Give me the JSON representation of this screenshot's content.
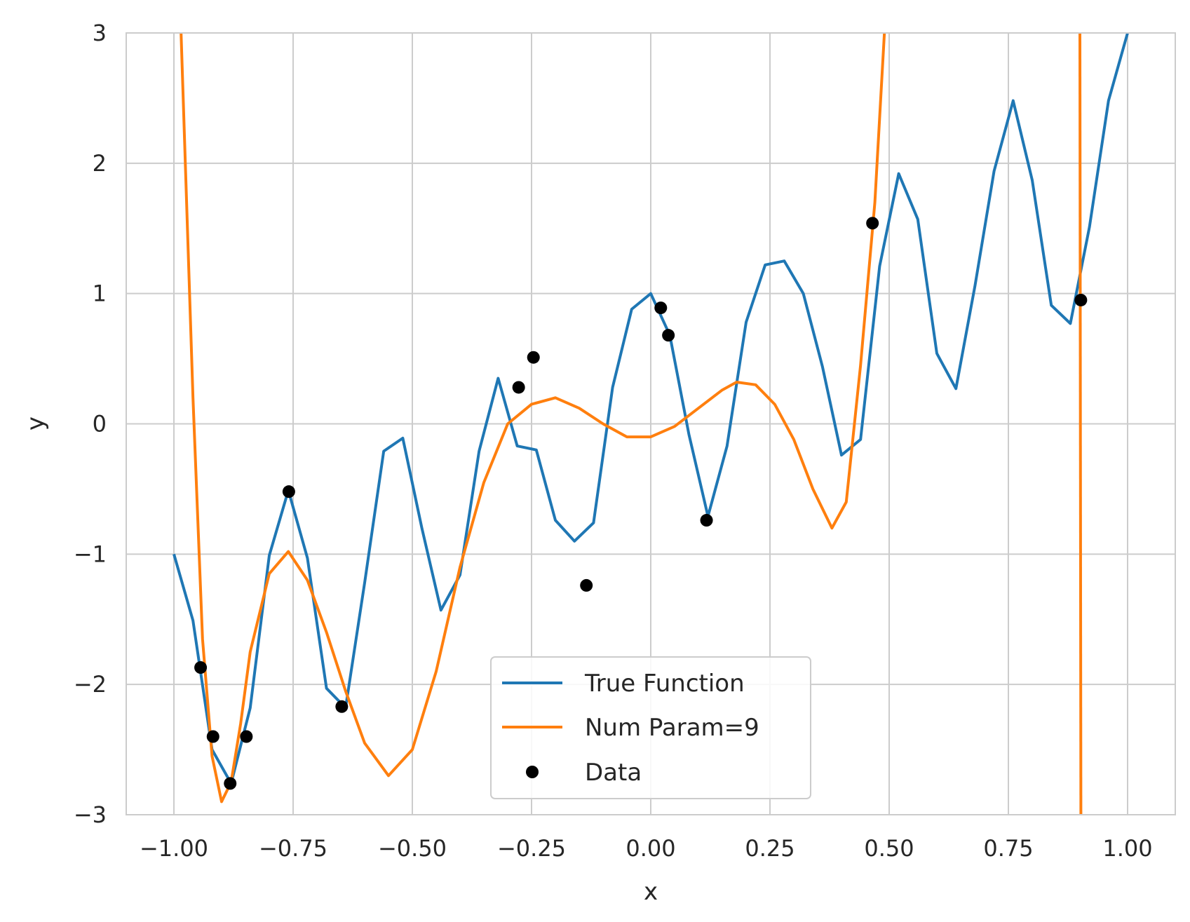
{
  "chart_data": {
    "type": "line",
    "title": "",
    "xlabel": "x",
    "ylabel": "y",
    "xlim": [
      -1.1,
      1.1
    ],
    "ylim": [
      -3,
      3
    ],
    "grid": true,
    "legend_position": "lower-center",
    "xticks": [
      -1.0,
      -0.75,
      -0.5,
      -0.25,
      0.0,
      0.25,
      0.5,
      0.75,
      1.0
    ],
    "xtick_labels": [
      "−1.00",
      "−0.75",
      "−0.50",
      "−0.25",
      "0.00",
      "0.25",
      "0.50",
      "0.75",
      "1.00"
    ],
    "yticks": [
      -3,
      -2,
      -1,
      0,
      1,
      2,
      3
    ],
    "ytick_labels": [
      "−3",
      "−2",
      "−1",
      "0",
      "1",
      "2",
      "3"
    ],
    "series": [
      {
        "name": "True Function",
        "kind": "line",
        "color": "#1f77b4",
        "x": [
          -1.0,
          -0.96,
          -0.92,
          -0.88,
          -0.84,
          -0.8,
          -0.76,
          -0.72,
          -0.68,
          -0.64,
          -0.6,
          -0.56,
          -0.52,
          -0.48,
          -0.44,
          -0.4,
          -0.36,
          -0.32,
          -0.28,
          -0.24,
          -0.2,
          -0.16,
          -0.12,
          -0.08,
          -0.04,
          0.0,
          0.04,
          0.08,
          0.12,
          0.16,
          0.2,
          0.24,
          0.28,
          0.32,
          0.36,
          0.4,
          0.44,
          0.48,
          0.52,
          0.56,
          0.6,
          0.64,
          0.68,
          0.72,
          0.76,
          0.8,
          0.84,
          0.88,
          0.92,
          0.96,
          1.0
        ],
        "y": [
          -1.0,
          -1.51,
          -2.5,
          -2.76,
          -2.18,
          -1.01,
          -0.51,
          -1.03,
          -2.03,
          -2.18,
          -1.22,
          -0.21,
          -0.11,
          -0.8,
          -1.43,
          -1.16,
          -0.21,
          0.35,
          -0.17,
          -0.2,
          -0.74,
          -0.9,
          -0.76,
          0.28,
          0.88,
          1.0,
          0.68,
          -0.08,
          -0.71,
          -0.17,
          0.78,
          1.22,
          1.25,
          1.0,
          0.44,
          -0.24,
          -0.12,
          1.21,
          1.92,
          1.57,
          0.54,
          0.27,
          1.06,
          1.94,
          2.48,
          1.87,
          0.91,
          0.77,
          1.51,
          2.48,
          3.0
        ]
      },
      {
        "name": "Num Param=9",
        "kind": "line",
        "color": "#ff7f0e",
        "x": [
          -0.985,
          -0.96,
          -0.94,
          -0.92,
          -0.9,
          -0.88,
          -0.86,
          -0.84,
          -0.8,
          -0.76,
          -0.72,
          -0.68,
          -0.64,
          -0.6,
          -0.55,
          -0.5,
          -0.45,
          -0.4,
          -0.35,
          -0.3,
          -0.25,
          -0.2,
          -0.15,
          -0.1,
          -0.05,
          0.0,
          0.05,
          0.1,
          0.15,
          0.18,
          0.22,
          0.26,
          0.3,
          0.34,
          0.38,
          0.41,
          0.44,
          0.47,
          0.49
        ],
        "y": [
          3.0,
          0.2,
          -1.65,
          -2.55,
          -2.9,
          -2.75,
          -2.3,
          -1.75,
          -1.15,
          -0.98,
          -1.2,
          -1.6,
          -2.05,
          -2.45,
          -2.7,
          -2.5,
          -1.9,
          -1.1,
          -0.45,
          0.0,
          0.15,
          0.2,
          0.12,
          0.0,
          -0.1,
          -0.1,
          -0.02,
          0.12,
          0.26,
          0.32,
          0.3,
          0.15,
          -0.12,
          -0.5,
          -0.8,
          -0.6,
          0.45,
          1.7,
          3.0
        ]
      },
      {
        "name": "Num Param=9",
        "kind": "line",
        "color": "#ff7f0e",
        "show_in_legend": false,
        "x": [
          0.9,
          0.902
        ],
        "y": [
          3.0,
          -3.0
        ]
      },
      {
        "name": "Data",
        "kind": "scatter",
        "color": "#000000",
        "x": [
          -0.944,
          -0.918,
          -0.882,
          -0.848,
          -0.759,
          -0.648,
          -0.277,
          -0.246,
          -0.135,
          0.021,
          0.037,
          0.117,
          0.465,
          0.902
        ],
        "y": [
          -1.87,
          -2.4,
          -2.76,
          -2.4,
          -0.52,
          -2.17,
          0.28,
          0.51,
          -1.24,
          0.89,
          0.68,
          -0.74,
          1.54,
          0.95
        ]
      }
    ],
    "legend": {
      "entries": [
        "True Function",
        "Num Param=9",
        "Data"
      ]
    }
  }
}
